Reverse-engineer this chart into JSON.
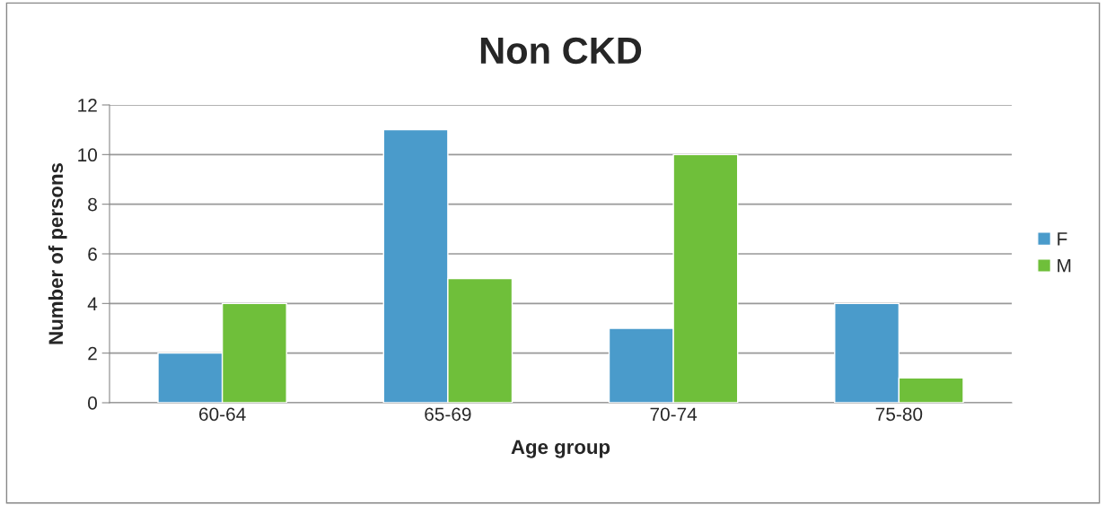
{
  "chart_data": {
    "type": "bar",
    "title": "Non CKD",
    "xlabel": "Age group",
    "ylabel": "Number of persons",
    "categories": [
      "60-64",
      "65-69",
      "70-74",
      "75-80"
    ],
    "series": [
      {
        "name": "F",
        "color": "#4a9bcb",
        "values": [
          2,
          11,
          3,
          4
        ]
      },
      {
        "name": "M",
        "color": "#6fbf3a",
        "values": [
          4,
          5,
          10,
          1
        ]
      }
    ],
    "ylim": [
      0,
      12
    ],
    "yticks": [
      0,
      2,
      4,
      6,
      8,
      10,
      12
    ],
    "grid": "y",
    "legend": "right"
  }
}
